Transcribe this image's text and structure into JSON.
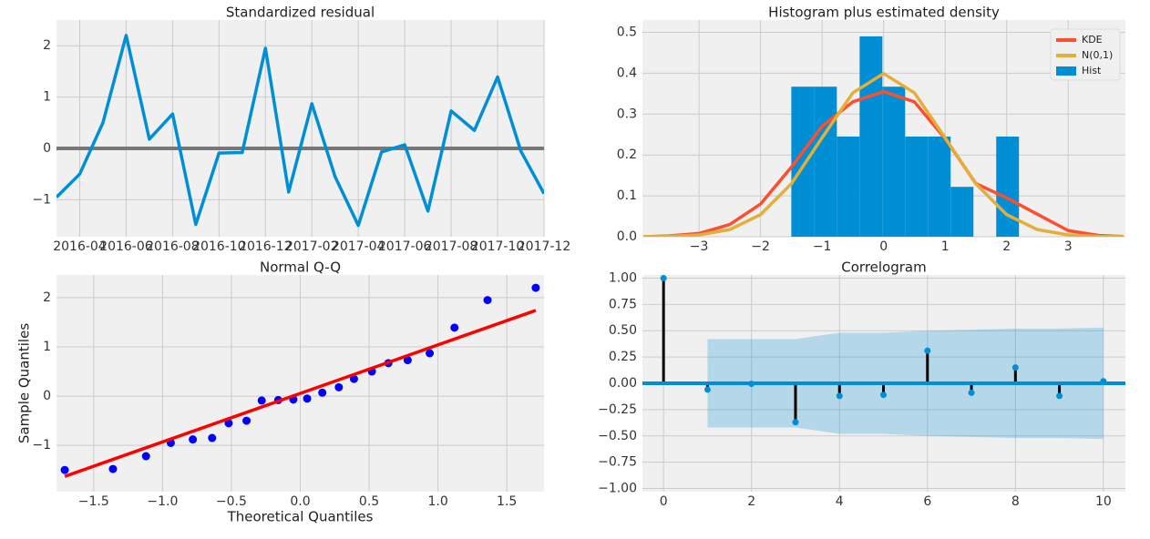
{
  "chart_data": [
    {
      "type": "line",
      "title": "Standardized residual",
      "color": "#008fd5",
      "hline": 0,
      "hline_color": "#777777",
      "grid": true,
      "x": [
        "2016-03",
        "2016-04",
        "2016-05",
        "2016-06",
        "2016-07",
        "2016-08",
        "2016-09",
        "2016-10",
        "2016-11",
        "2016-12",
        "2017-01",
        "2017-02",
        "2017-03",
        "2017-04",
        "2017-05",
        "2017-06",
        "2017-07",
        "2017-08",
        "2017-09",
        "2017-10",
        "2017-11",
        "2017-12"
      ],
      "values": [
        -0.95,
        -0.5,
        0.5,
        2.2,
        0.18,
        0.67,
        -1.48,
        -0.09,
        -0.08,
        1.95,
        -0.85,
        0.87,
        -0.55,
        -1.5,
        -0.07,
        0.07,
        -1.22,
        0.73,
        0.35,
        1.39,
        -0.05,
        -0.88
      ],
      "xlim": [
        "2016-03",
        "2017-12"
      ],
      "xticks": [
        "2016-04",
        "2016-06",
        "2016-08",
        "2016-10",
        "2016-12",
        "2017-02",
        "2017-04",
        "2017-06",
        "2017-08",
        "2017-10",
        "2017-12"
      ],
      "ylim": [
        -1.72,
        2.5
      ],
      "yticks": [
        {
          "value": -1,
          "label": "−1"
        },
        0,
        1,
        2
      ]
    },
    {
      "type": "histogram",
      "title": "Histogram plus estimated density",
      "grid": true,
      "legend": "upper right",
      "hist": {
        "name": "Hist",
        "color": "#008fd5",
        "bins": [
          -1.5,
          -1.13,
          -0.76,
          -0.39,
          -0.02,
          0.35,
          0.72,
          1.09,
          1.46,
          1.83,
          2.2
        ],
        "values": [
          0.367,
          0.367,
          0.245,
          0.49,
          0.367,
          0.245,
          0.245,
          0.122,
          0,
          0.245
        ]
      },
      "x": [
        -3.9,
        -3.5,
        -3,
        -2.5,
        -2,
        -1.5,
        -1,
        -0.5,
        0,
        0.5,
        1,
        1.5,
        2,
        2.5,
        3,
        3.5,
        3.9
      ],
      "series": [
        {
          "name": "KDE",
          "color": "#fc4f30",
          "values": [
            0,
            0.002,
            0.008,
            0.03,
            0.08,
            0.17,
            0.27,
            0.33,
            0.355,
            0.33,
            0.24,
            0.13,
            0.095,
            0.055,
            0.015,
            0.003,
            0.0005
          ]
        },
        {
          "name": "N(0,1)",
          "color": "#e5ae38",
          "values": [
            0.0002,
            0.0009,
            0.0044,
            0.0175,
            0.054,
            0.1295,
            0.242,
            0.352,
            0.399,
            0.352,
            0.242,
            0.1295,
            0.054,
            0.0175,
            0.0044,
            0.0009,
            0.0002
          ]
        }
      ],
      "xlim": [
        -3.92,
        3.93
      ],
      "xticks": [
        {
          "value": -3,
          "label": "−3"
        },
        {
          "value": -2,
          "label": "−2"
        },
        {
          "value": -1,
          "label": "−1"
        },
        0,
        1,
        2,
        3
      ],
      "ylim": [
        0,
        0.53
      ],
      "yticks": [
        {
          "value": 0,
          "label": "0.0"
        },
        0.1,
        0.2,
        0.3,
        0.4,
        0.5
      ]
    },
    {
      "type": "scatter",
      "title": "Normal Q-Q",
      "xlabel": "Theoretical Quantiles",
      "ylabel": "Sample Quantiles",
      "color": "#0000ff",
      "grid": true,
      "x": [
        -1.71,
        -1.36,
        -1.12,
        -0.94,
        -0.78,
        -0.64,
        -0.52,
        -0.39,
        -0.28,
        -0.16,
        -0.05,
        0.05,
        0.16,
        0.28,
        0.39,
        0.52,
        0.64,
        0.78,
        0.94,
        1.12,
        1.36,
        1.71
      ],
      "values": [
        -1.5,
        -1.48,
        -1.22,
        -0.95,
        -0.88,
        -0.85,
        -0.55,
        -0.5,
        -0.09,
        -0.08,
        -0.07,
        -0.05,
        0.07,
        0.18,
        0.35,
        0.5,
        0.67,
        0.73,
        0.87,
        1.39,
        1.95,
        2.2
      ],
      "fit_line": {
        "color": "#ff0000",
        "x": [
          -1.71,
          1.71
        ],
        "values": [
          -1.63,
          1.74
        ]
      },
      "xlim": [
        -1.77,
        1.77
      ],
      "xticks": [
        {
          "value": -1.5,
          "label": "−1.5"
        },
        {
          "value": -1,
          "label": "−1.0"
        },
        {
          "value": -0.5,
          "label": "−0.5"
        },
        {
          "value": 0,
          "label": "0.0"
        },
        0.5,
        {
          "value": 1,
          "label": "1.0"
        },
        1.5
      ],
      "ylim": [
        -1.94,
        2.46
      ],
      "yticks": [
        {
          "value": -1,
          "label": "−1"
        },
        0,
        1,
        2
      ]
    },
    {
      "type": "stem",
      "title": "Correlogram",
      "color": "#008fd5",
      "stem_color": "#000000",
      "hline": 0,
      "hline_color": "#008fd5",
      "grid": true,
      "x": [
        0,
        1,
        2,
        3,
        4,
        5,
        6,
        7,
        8,
        9,
        10
      ],
      "values": [
        1.0,
        -0.06,
        -0.005,
        -0.37,
        -0.12,
        -0.11,
        0.31,
        -0.09,
        0.15,
        -0.12,
        0.02
      ],
      "band": {
        "color": "#008fd5",
        "x": [
          1,
          2,
          3,
          4,
          5,
          6,
          7,
          8,
          9,
          10
        ],
        "upper": [
          0.42,
          0.42,
          0.42,
          0.48,
          0.48,
          0.5,
          0.51,
          0.52,
          0.52,
          0.53
        ],
        "lower": [
          -0.42,
          -0.42,
          -0.42,
          -0.48,
          -0.48,
          -0.5,
          -0.51,
          -0.52,
          -0.52,
          -0.53
        ]
      },
      "xlim": [
        -0.48,
        10.5
      ],
      "xticks": [
        0,
        2,
        4,
        6,
        8,
        10
      ],
      "ylim": [
        -1.03,
        1.03
      ],
      "yticks": [
        {
          "value": -1,
          "label": "−1.00"
        },
        {
          "value": -0.75,
          "label": "−0.75"
        },
        {
          "value": -0.5,
          "label": "−0.50"
        },
        {
          "value": -0.25,
          "label": "−0.25"
        },
        {
          "value": 0,
          "label": "0.00"
        },
        {
          "value": 0.25,
          "label": "0.25"
        },
        {
          "value": 0.5,
          "label": "0.50"
        },
        {
          "value": 0.75,
          "label": "0.75"
        },
        {
          "value": 1,
          "label": "1.00"
        }
      ]
    }
  ]
}
